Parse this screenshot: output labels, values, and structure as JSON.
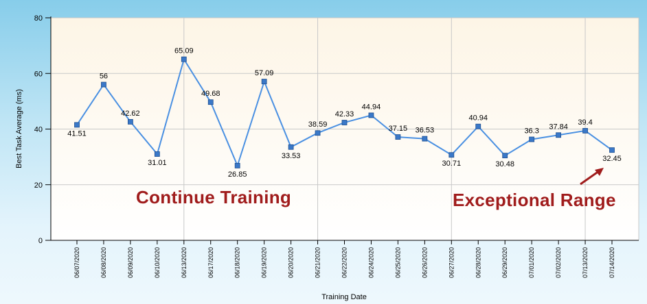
{
  "chart_data": {
    "type": "line",
    "categories": [
      "06/07/2020",
      "06/08/2020",
      "06/09/2020",
      "06/10/2020",
      "06/13/2020",
      "06/17/2020",
      "06/18/2020",
      "06/19/2020",
      "06/20/2020",
      "06/21/2020",
      "06/22/2020",
      "06/24/2020",
      "06/25/2020",
      "06/26/2020",
      "06/27/2020",
      "06/28/2020",
      "06/29/2020",
      "07/01/2020",
      "07/02/2020",
      "07/13/2020",
      "07/14/2020"
    ],
    "values": [
      41.51,
      56,
      42.62,
      31.01,
      65.09,
      49.68,
      26.85,
      57.09,
      33.53,
      38.59,
      42.33,
      44.94,
      37.15,
      36.53,
      30.71,
      40.94,
      30.48,
      36.3,
      37.84,
      39.4,
      32.45
    ],
    "data_labels": [
      "41.51",
      "56",
      "42.62",
      "31.01",
      "65.09",
      "49.68",
      "26.85",
      "57.09",
      "33.53",
      "38.59",
      "42.33",
      "44.94",
      "37.15",
      "36.53",
      "30.71",
      "40.94",
      "30.48",
      "36.3",
      "37.84",
      "39.4",
      "32.45"
    ],
    "label_position": [
      "below",
      "above",
      "above",
      "below",
      "above",
      "above",
      "below",
      "above",
      "below",
      "above",
      "above",
      "above",
      "above",
      "above",
      "below",
      "above",
      "below",
      "above",
      "above",
      "above",
      "below"
    ],
    "xlabel": "Training Date",
    "ylabel": "Best Task Average (ms)",
    "ylim": [
      0,
      80
    ],
    "yticks": [
      "0",
      "20",
      "40",
      "60",
      "80"
    ],
    "grid": true,
    "line_color": "#4a90e2",
    "marker_color": "#3a78c8",
    "annotations": [
      {
        "text": "Continue Training",
        "color": "#a01c1c"
      },
      {
        "text": "Exceptional Range",
        "color": "#a01c1c"
      }
    ]
  },
  "colors": {
    "plot_background_top": "#fdf5e6",
    "plot_background_bottom": "#ffffff",
    "grid": "#c8c8c8",
    "annotation": "#a01c1c"
  }
}
